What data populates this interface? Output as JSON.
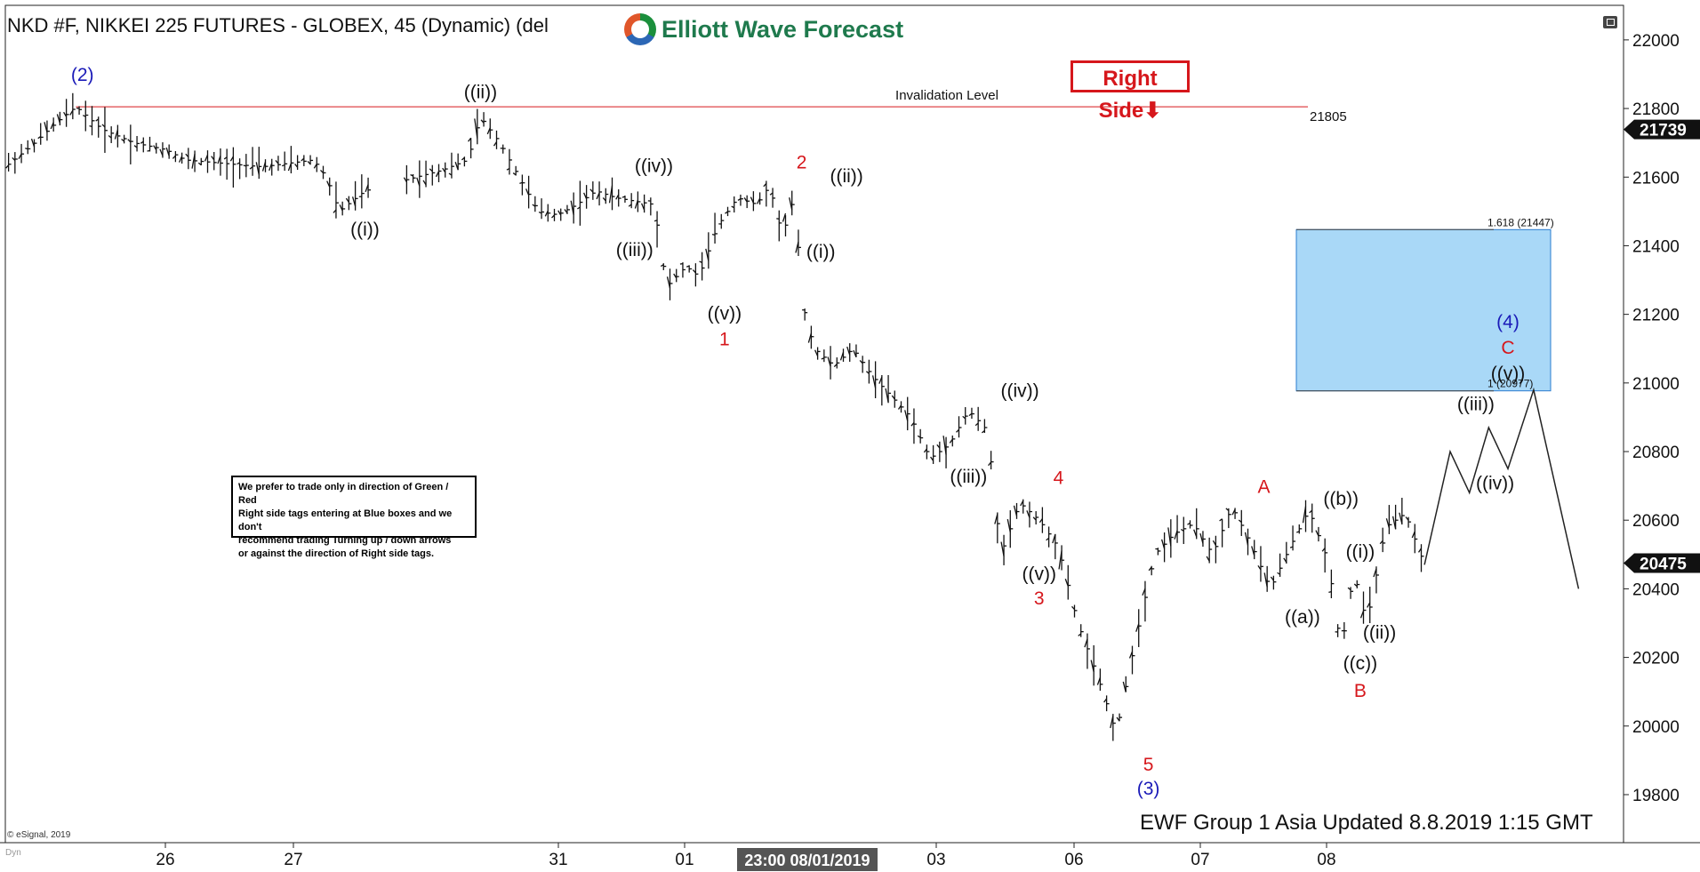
{
  "header": {
    "title": "NKD #F, NIKKEI 225 FUTURES - GLOBEX, 45 (Dynamic) (del",
    "logo_text": "Elliott Wave Forecast",
    "right_side_tag": "Right Side"
  },
  "note": {
    "lines": [
      "We prefer to trade only in direction of Green / Red",
      "Right side tags entering at Blue boxes and we don't",
      "recommend trading Turning up / down arrows",
      "or against the direction of Right side tags."
    ]
  },
  "footer": {
    "update_text": "EWF Group 1 Asia Updated 8.8.2019 1:15 GMT",
    "copyright": "© eSignal, 2019",
    "dyn_label": "Dyn"
  },
  "chart_data": {
    "type": "ohlc",
    "y_axis": {
      "ylim": [
        19660,
        22080
      ],
      "ticks": [
        19800,
        20000,
        20200,
        20400,
        20600,
        20800,
        21000,
        21200,
        21400,
        21600,
        21800,
        22000
      ],
      "tick_labels": [
        "19800",
        "20000",
        "20200",
        "20400",
        "20600",
        "20800",
        "21000",
        "21200",
        "21400",
        "21600",
        "21800",
        "22000"
      ],
      "price_markers": [
        {
          "value": 21739,
          "label": "21739"
        },
        {
          "value": 20475,
          "label": "20475"
        }
      ]
    },
    "x_axis": {
      "tick_labels": [
        "26",
        "27",
        "31",
        "01",
        "03",
        "06",
        "07",
        "08"
      ],
      "cursor_label": "23:00 08/01/2019"
    },
    "invalidation": {
      "label": "Invalidation Level",
      "value": 21805,
      "value_label": "21805"
    },
    "target_box": {
      "upper": 21447,
      "lower": 20977,
      "upper_label": "1.618 (21447)",
      "lower_label": "1 (20977)"
    },
    "price_path": [
      {
        "t": 0,
        "p": 21630
      },
      {
        "t": 4,
        "p": 21690
      },
      {
        "t": 8,
        "p": 21760
      },
      {
        "t": 11,
        "p": 21805
      },
      {
        "t": 15,
        "p": 21740
      },
      {
        "t": 20,
        "p": 21700
      },
      {
        "t": 25,
        "p": 21680
      },
      {
        "t": 28,
        "p": 21650
      },
      {
        "t": 34,
        "p": 21640
      },
      {
        "t": 40,
        "p": 21630
      },
      {
        "t": 44,
        "p": 21640
      },
      {
        "t": 48,
        "p": 21650
      },
      {
        "t": 50,
        "p": 21600
      },
      {
        "t": 52,
        "p": 21500
      },
      {
        "t": 56,
        "p": 21560
      },
      {
        "t": 60,
        "p": 21580
      },
      {
        "t": 64,
        "p": 21600
      },
      {
        "t": 68,
        "p": 21620
      },
      {
        "t": 72,
        "p": 21650
      },
      {
        "t": 74,
        "p": 21775
      },
      {
        "t": 77,
        "p": 21700
      },
      {
        "t": 80,
        "p": 21600
      },
      {
        "t": 83,
        "p": 21500
      },
      {
        "t": 86,
        "p": 21490
      },
      {
        "t": 89,
        "p": 21520
      },
      {
        "t": 92,
        "p": 21560
      },
      {
        "t": 95,
        "p": 21540
      },
      {
        "t": 98,
        "p": 21530
      },
      {
        "t": 101,
        "p": 21520
      },
      {
        "t": 103,
        "p": 21280
      },
      {
        "t": 106,
        "p": 21340
      },
      {
        "t": 108,
        "p": 21310
      },
      {
        "t": 111,
        "p": 21460
      },
      {
        "t": 114,
        "p": 21540
      },
      {
        "t": 117,
        "p": 21520
      },
      {
        "t": 119,
        "p": 21575
      },
      {
        "t": 121,
        "p": 21430
      },
      {
        "t": 123,
        "p": 21550
      },
      {
        "t": 124,
        "p": 21240
      },
      {
        "t": 126,
        "p": 21100
      },
      {
        "t": 129,
        "p": 21050
      },
      {
        "t": 132,
        "p": 21100
      },
      {
        "t": 135,
        "p": 21020
      },
      {
        "t": 138,
        "p": 20960
      },
      {
        "t": 141,
        "p": 20900
      },
      {
        "t": 144,
        "p": 20780
      },
      {
        "t": 147,
        "p": 20820
      },
      {
        "t": 150,
        "p": 20920
      },
      {
        "t": 153,
        "p": 20860
      },
      {
        "t": 155,
        "p": 20500
      },
      {
        "t": 158,
        "p": 20650
      },
      {
        "t": 161,
        "p": 20600
      },
      {
        "t": 164,
        "p": 20520
      },
      {
        "t": 167,
        "p": 20300
      },
      {
        "t": 170,
        "p": 20150
      },
      {
        "t": 173,
        "p": 19980
      },
      {
        "t": 176,
        "p": 20250
      },
      {
        "t": 179,
        "p": 20500
      },
      {
        "t": 182,
        "p": 20560
      },
      {
        "t": 185,
        "p": 20590
      },
      {
        "t": 188,
        "p": 20500
      },
      {
        "t": 191,
        "p": 20640
      },
      {
        "t": 194,
        "p": 20530
      },
      {
        "t": 197,
        "p": 20400
      },
      {
        "t": 200,
        "p": 20520
      },
      {
        "t": 203,
        "p": 20630
      },
      {
        "t": 206,
        "p": 20480
      },
      {
        "t": 208,
        "p": 20220
      },
      {
        "t": 210,
        "p": 20450
      },
      {
        "t": 212,
        "p": 20300
      },
      {
        "t": 215,
        "p": 20580
      },
      {
        "t": 218,
        "p": 20620
      },
      {
        "t": 221,
        "p": 20470
      }
    ],
    "projection": [
      {
        "t": 221,
        "p": 20470
      },
      {
        "t": 225,
        "p": 20800
      },
      {
        "t": 228,
        "p": 20680
      },
      {
        "t": 231,
        "p": 20870
      },
      {
        "t": 234,
        "p": 20750
      },
      {
        "t": 238,
        "p": 20980
      },
      {
        "t": 245,
        "p": 20400
      }
    ],
    "wave_labels": [
      {
        "text": "(2)",
        "color": "#1a1ab8",
        "t": 12,
        "p": 21880
      },
      {
        "text": "((ii))",
        "color": "#111111",
        "t": 74,
        "p": 21830
      },
      {
        "text": "((i))",
        "color": "#111111",
        "t": 56,
        "p": 21430
      },
      {
        "text": "((iii))",
        "color": "#111111",
        "t": 98,
        "p": 21370
      },
      {
        "text": "((iv))",
        "color": "#111111",
        "t": 101,
        "p": 21615
      },
      {
        "text": "((v))",
        "color": "#111111",
        "t": 112,
        "p": 21185
      },
      {
        "text": "1",
        "color": "#d6171c",
        "t": 112,
        "p": 21110
      },
      {
        "text": "2",
        "color": "#d6171c",
        "t": 124,
        "p": 21625
      },
      {
        "text": "((ii))",
        "color": "#111111",
        "t": 131,
        "p": 21585
      },
      {
        "text": "((i))",
        "color": "#111111",
        "t": 127,
        "p": 21365
      },
      {
        "text": "((iv))",
        "color": "#111111",
        "t": 158,
        "p": 20960
      },
      {
        "text": "((iii))",
        "color": "#111111",
        "t": 150,
        "p": 20710
      },
      {
        "text": "4",
        "color": "#d6171c",
        "t": 164,
        "p": 20705
      },
      {
        "text": "((v))",
        "color": "#111111",
        "t": 161,
        "p": 20425
      },
      {
        "text": "3",
        "color": "#d6171c",
        "t": 161,
        "p": 20355
      },
      {
        "text": "5",
        "color": "#d6171c",
        "t": 178,
        "p": 19870
      },
      {
        "text": "(3)",
        "color": "#1a1ab8",
        "t": 178,
        "p": 19800
      },
      {
        "text": "A",
        "color": "#d6171c",
        "t": 196,
        "p": 20680
      },
      {
        "text": "((a))",
        "color": "#111111",
        "t": 202,
        "p": 20300
      },
      {
        "text": "((b))",
        "color": "#111111",
        "t": 208,
        "p": 20645
      },
      {
        "text": "((i))",
        "color": "#111111",
        "t": 211,
        "p": 20490
      },
      {
        "text": "((ii))",
        "color": "#111111",
        "t": 214,
        "p": 20255
      },
      {
        "text": "((c))",
        "color": "#111111",
        "t": 211,
        "p": 20165
      },
      {
        "text": "B",
        "color": "#d6171c",
        "t": 211,
        "p": 20085
      },
      {
        "text": "((iii))",
        "color": "#111111",
        "t": 229,
        "p": 20920
      },
      {
        "text": "((iv))",
        "color": "#111111",
        "t": 232,
        "p": 20690
      },
      {
        "text": "(4)",
        "color": "#1a1ab8",
        "t": 234,
        "p": 21160
      },
      {
        "text": "C",
        "color": "#d6171c",
        "t": 234,
        "p": 21085
      },
      {
        "text": "((v))",
        "color": "#111111",
        "t": 234,
        "p": 21010
      }
    ]
  }
}
